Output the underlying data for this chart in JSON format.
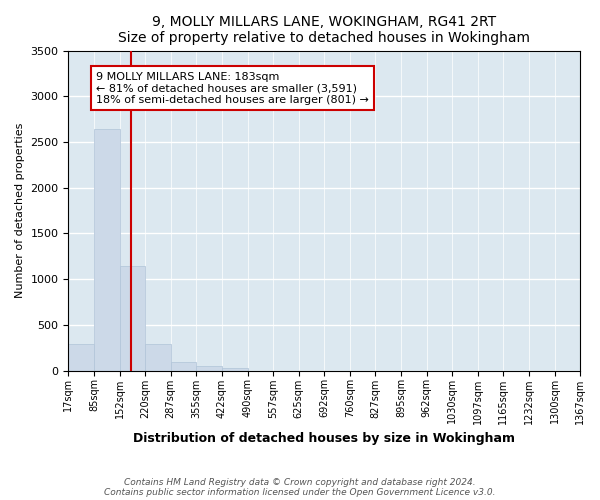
{
  "title1": "9, MOLLY MILLARS LANE, WOKINGHAM, RG41 2RT",
  "title2": "Size of property relative to detached houses in Wokingham",
  "xlabel": "Distribution of detached houses by size in Wokingham",
  "ylabel": "Number of detached properties",
  "property_size": 183,
  "annotation_title": "9 MOLLY MILLARS LANE: 183sqm",
  "annotation_line1": "← 81% of detached houses are smaller (3,591)",
  "annotation_line2": "18% of semi-detached houses are larger (801) →",
  "footer1": "Contains HM Land Registry data © Crown copyright and database right 2024.",
  "footer2": "Contains public sector information licensed under the Open Government Licence v3.0.",
  "bar_color": "#ccd9e8",
  "bar_edge_color": "#b0c4d8",
  "vline_color": "#cc0000",
  "annotation_box_color": "#cc0000",
  "bins": [
    17,
    85,
    152,
    220,
    287,
    355,
    422,
    490,
    557,
    625,
    692,
    760,
    827,
    895,
    962,
    1030,
    1097,
    1165,
    1232,
    1300,
    1367
  ],
  "counts": [
    285,
    2640,
    1140,
    285,
    90,
    45,
    25,
    0,
    0,
    0,
    0,
    0,
    0,
    0,
    0,
    0,
    0,
    0,
    0,
    0
  ],
  "ylim": [
    0,
    3500
  ],
  "yticks": [
    0,
    500,
    1000,
    1500,
    2000,
    2500,
    3000,
    3500
  ],
  "bg_color": "#dce8f0",
  "grid_color": "#ffffff",
  "fig_bg_color": "#ffffff"
}
